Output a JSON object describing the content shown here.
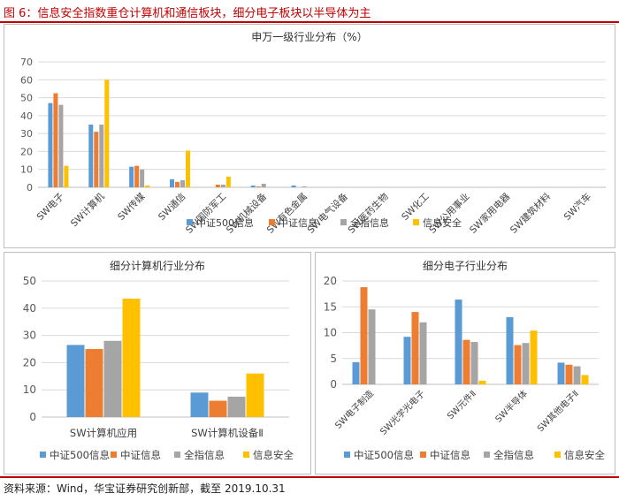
{
  "figure_title": "图 6：信息安全指数重仓计算机和通信板块，细分电子板块以半导体为主",
  "source_note": "资料来源：Wind，华宝证券研究创新部，截至 2019.10.31",
  "colors": {
    "s1": "#5b9bd5",
    "s2": "#ed7d31",
    "s3": "#a5a5a5",
    "s4": "#ffc000",
    "accent": "#c00000"
  },
  "chart_data": [
    {
      "type": "bar",
      "title": "申万一级行业分布（%）",
      "categories": [
        "SW电子",
        "SW计算机",
        "SW传媒",
        "SW通信",
        "SW国防军工",
        "SW机械设备",
        "SW有色金属",
        "SW电气设备",
        "SW医药生物",
        "SW化工",
        "SW公用事业",
        "SW家用电器",
        "SW建筑材料",
        "SW汽车"
      ],
      "series": [
        {
          "name": "中证500信息",
          "values": [
            47,
            35,
            11.5,
            4.5,
            0,
            1,
            1,
            0,
            0,
            0,
            0,
            0,
            0,
            0
          ]
        },
        {
          "name": "中证信息",
          "values": [
            52.5,
            31,
            12,
            3,
            1.5,
            0.5,
            0,
            0,
            0,
            0,
            0,
            0,
            0,
            0
          ]
        },
        {
          "name": "全指信息",
          "values": [
            46,
            35,
            10,
            4,
            1.5,
            2,
            0.5,
            0,
            0,
            0,
            0,
            0,
            0,
            0
          ]
        },
        {
          "name": "信息安全",
          "values": [
            12,
            60,
            1,
            20.5,
            6,
            0,
            0,
            0,
            0,
            0,
            0,
            0,
            0,
            0
          ]
        }
      ],
      "ylim": [
        0,
        70
      ],
      "yticks": [
        0,
        10,
        20,
        30,
        40,
        50,
        60,
        70
      ],
      "legend": "bottom"
    },
    {
      "type": "bar",
      "title": "细分计算机行业分布",
      "categories": [
        "SW计算机应用",
        "SW计算机设备Ⅱ"
      ],
      "series": [
        {
          "name": "中证500信息",
          "values": [
            26.5,
            9
          ]
        },
        {
          "name": "中证信息",
          "values": [
            25,
            6
          ]
        },
        {
          "name": "全指信息",
          "values": [
            28,
            7.5
          ]
        },
        {
          "name": "信息安全",
          "values": [
            43.5,
            16
          ]
        }
      ],
      "ylim": [
        0,
        50
      ],
      "yticks": [
        0,
        10,
        20,
        30,
        40,
        50
      ],
      "legend": "bottom"
    },
    {
      "type": "bar",
      "title": "细分电子行业分布",
      "categories": [
        "SW电子制造",
        "SW光学光电子",
        "SW元件Ⅱ",
        "SW半导体",
        "SW其他电子Ⅱ"
      ],
      "series": [
        {
          "name": "中证500信息",
          "values": [
            4.3,
            9.2,
            16.4,
            13,
            4.2
          ]
        },
        {
          "name": "中证信息",
          "values": [
            18.8,
            14,
            8.6,
            7.6,
            3.8
          ]
        },
        {
          "name": "全指信息",
          "values": [
            14.5,
            12,
            8.2,
            8,
            3.5
          ]
        },
        {
          "name": "信息安全",
          "values": [
            0,
            0,
            0.7,
            10.4,
            1.8
          ]
        }
      ],
      "ylim": [
        0,
        20
      ],
      "yticks": [
        0,
        5,
        10,
        15,
        20
      ],
      "legend": "bottom"
    }
  ]
}
